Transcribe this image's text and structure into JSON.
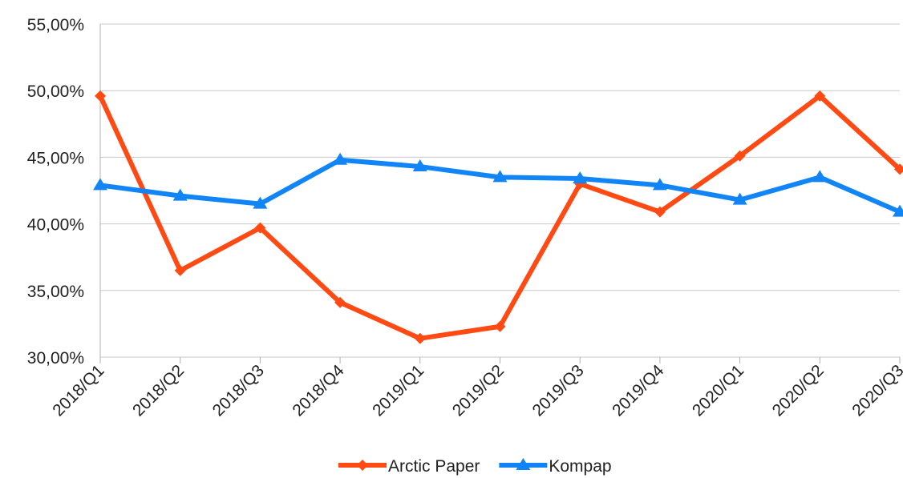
{
  "chart_data": {
    "type": "line",
    "categories": [
      "2018/Q1",
      "2018/Q2",
      "2018/Q3",
      "2018/Q4",
      "2019/Q1",
      "2019/Q2",
      "2019/Q3",
      "2019/Q4",
      "2020/Q1",
      "2020/Q2",
      "2020/Q3"
    ],
    "series": [
      {
        "name": "Arctic Paper",
        "color": "#ff4a14",
        "marker": "diamond",
        "values": [
          49.6,
          36.5,
          39.7,
          34.1,
          31.4,
          32.3,
          43.0,
          40.9,
          45.1,
          49.6,
          44.1
        ]
      },
      {
        "name": "Kompap",
        "color": "#1185f5",
        "marker": "triangle",
        "values": [
          42.9,
          42.1,
          41.5,
          44.8,
          44.3,
          43.5,
          43.4,
          42.9,
          41.8,
          43.5,
          40.9
        ]
      }
    ],
    "ylim": [
      30,
      55
    ],
    "yticks": [
      {
        "value": 30,
        "label": "30,00%"
      },
      {
        "value": 35,
        "label": "35,00%"
      },
      {
        "value": 40,
        "label": "40,00%"
      },
      {
        "value": 45,
        "label": "45,00%"
      },
      {
        "value": 50,
        "label": "50,00%"
      },
      {
        "value": 55,
        "label": "55,00%"
      }
    ],
    "grid": true,
    "legend": "bottom"
  }
}
